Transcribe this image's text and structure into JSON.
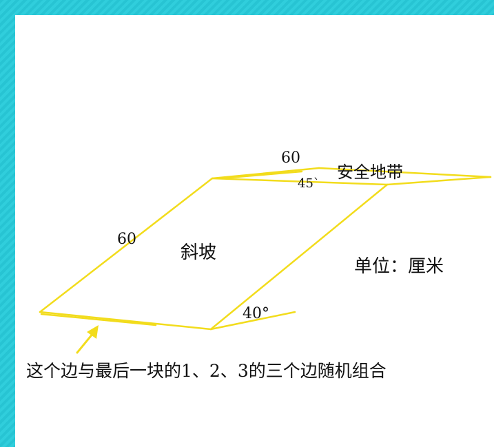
{
  "diagram": {
    "labels": {
      "top_length": "60",
      "top_angle": "45`",
      "safety_zone": "安全地带",
      "left_length": "60",
      "slope": "斜坡",
      "unit": "单位：厘米",
      "bottom_angle": "40°",
      "note": "这个边与最后一块的1、2、3的三个边随机组合"
    },
    "colors": {
      "line": "#f2dc1c",
      "text": "#111111",
      "frame": "#2ac8d6",
      "background": "#ffffff"
    }
  }
}
